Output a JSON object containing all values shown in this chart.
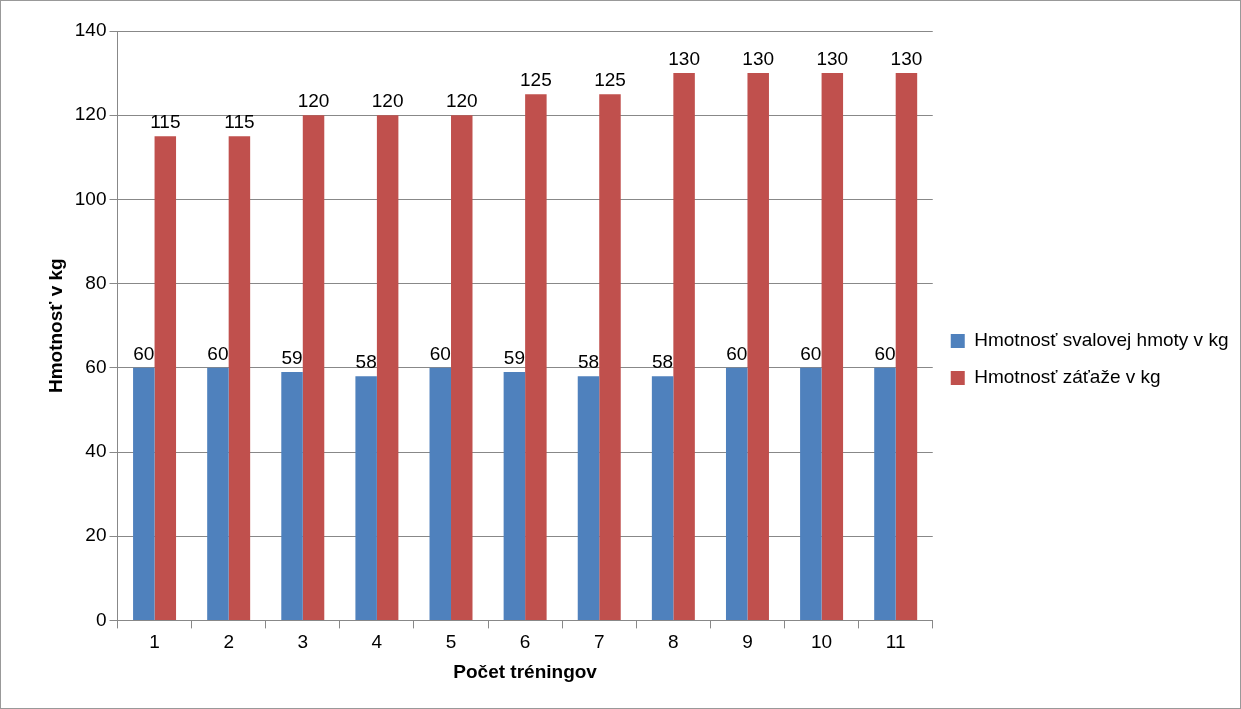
{
  "chart_data": {
    "type": "bar",
    "xlabel": "Počet tréningov",
    "ylabel": "Hmotnosť v kg",
    "categories": [
      "1",
      "2",
      "3",
      "4",
      "5",
      "6",
      "7",
      "8",
      "9",
      "10",
      "11"
    ],
    "series": [
      {
        "name": "Hmotnosť svalovej hmoty v kg",
        "color": "#4f81bd",
        "values": [
          60,
          60,
          59,
          58,
          60,
          59,
          58,
          58,
          60,
          60,
          60
        ]
      },
      {
        "name": "Hmotnosť záťaže v kg",
        "color": "#c0504d",
        "values": [
          115,
          115,
          120,
          120,
          120,
          125,
          125,
          130,
          130,
          130,
          130
        ]
      }
    ],
    "ylim": [
      0,
      140
    ],
    "yticks": [
      0,
      20,
      40,
      60,
      80,
      100,
      120,
      140
    ],
    "grid": "y",
    "legend": "right",
    "data_labels": true
  }
}
